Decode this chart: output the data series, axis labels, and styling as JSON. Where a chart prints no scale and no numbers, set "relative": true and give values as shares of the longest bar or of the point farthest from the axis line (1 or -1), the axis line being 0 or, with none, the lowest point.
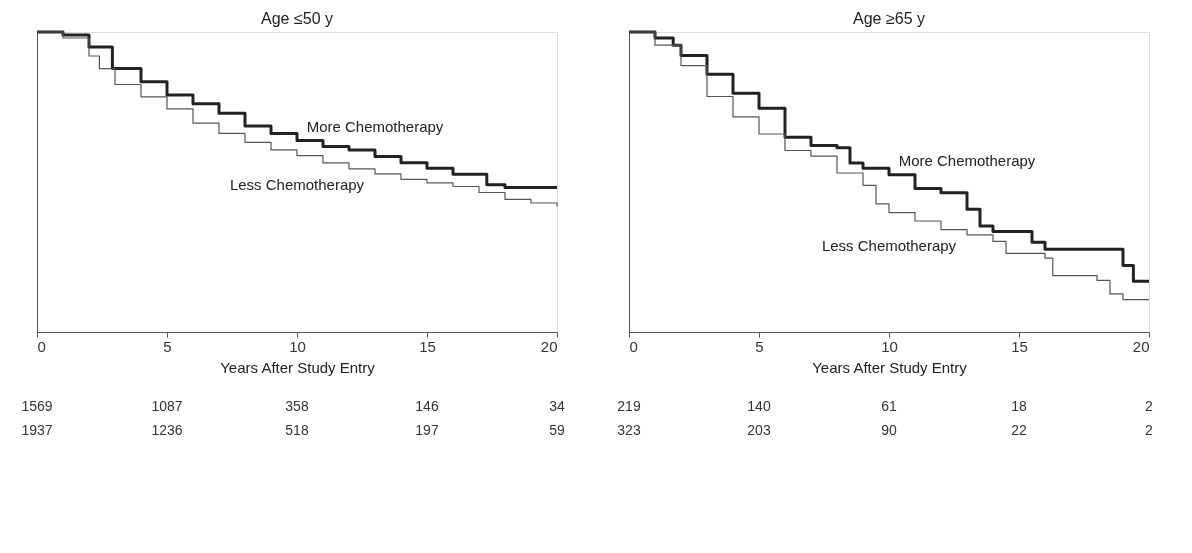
{
  "chart_data": [
    {
      "type": "step",
      "title": "Age ≤50 y",
      "xlabel": "Years After Study Entry",
      "relative": true,
      "xlim": [
        0,
        20
      ],
      "xticks": [
        0,
        5,
        10,
        15,
        20
      ],
      "grid": false,
      "series": [
        {
          "name": "More Chemotherapy",
          "color": "#222222",
          "x": [
            0,
            1,
            2,
            2.9,
            4,
            5,
            6,
            7,
            8,
            9,
            10,
            11,
            12,
            13,
            14,
            15,
            16,
            17.3,
            18,
            20
          ],
          "values": [
            1.0,
            0.99,
            0.95,
            0.878,
            0.834,
            0.79,
            0.761,
            0.729,
            0.687,
            0.662,
            0.638,
            0.618,
            0.607,
            0.585,
            0.564,
            0.546,
            0.526,
            0.491,
            0.482,
            0.482
          ]
        },
        {
          "name": "Less Chemotherapy",
          "color": "#555555",
          "x": [
            0,
            1,
            2,
            2.4,
            3,
            4,
            5,
            6,
            7,
            8,
            9,
            10,
            11,
            12,
            13,
            14,
            15,
            16,
            17,
            18,
            19,
            20
          ],
          "values": [
            1.0,
            0.98,
            0.92,
            0.878,
            0.825,
            0.784,
            0.744,
            0.696,
            0.662,
            0.632,
            0.607,
            0.588,
            0.564,
            0.544,
            0.527,
            0.509,
            0.497,
            0.485,
            0.465,
            0.442,
            0.43,
            0.418
          ]
        }
      ],
      "annotations": [
        "1569",
        "1087",
        "358",
        "146",
        "34",
        "1937",
        "1236",
        "518",
        "197",
        "59"
      ]
    },
    {
      "type": "step",
      "title": "Age ≥65 y",
      "xlabel": "Years After Study Entry",
      "relative": true,
      "xlim": [
        0,
        20
      ],
      "xticks": [
        0,
        5,
        10,
        15,
        20
      ],
      "grid": false,
      "series": [
        {
          "name": "More Chemotherapy",
          "color": "#222222",
          "x": [
            0,
            1,
            1.7,
            2,
            3,
            4,
            5,
            6,
            7,
            8,
            8.5,
            9,
            10,
            11,
            12,
            13,
            13.5,
            14,
            15,
            15.5,
            16,
            18.8,
            19,
            19.4,
            20
          ],
          "values": [
            1.0,
            0.98,
            0.956,
            0.922,
            0.859,
            0.796,
            0.746,
            0.649,
            0.622,
            0.614,
            0.563,
            0.546,
            0.524,
            0.478,
            0.464,
            0.409,
            0.353,
            0.335,
            0.335,
            0.299,
            0.276,
            0.276,
            0.222,
            0.169,
            0.169
          ]
        },
        {
          "name": "Less Chemotherapy",
          "color": "#555555",
          "x": [
            0,
            1,
            2,
            3,
            4,
            5,
            6,
            7,
            8,
            9,
            9.5,
            10,
            11,
            12,
            13,
            14,
            14.5,
            15,
            16,
            16.3,
            18,
            18.5,
            19,
            20
          ],
          "values": [
            1.0,
            0.956,
            0.888,
            0.785,
            0.717,
            0.66,
            0.605,
            0.586,
            0.53,
            0.489,
            0.427,
            0.398,
            0.37,
            0.341,
            0.324,
            0.302,
            0.262,
            0.262,
            0.246,
            0.188,
            0.172,
            0.127,
            0.108,
            0.108
          ]
        }
      ],
      "annotations": [
        "219",
        "140",
        "61",
        "18",
        "2",
        "323",
        "203",
        "90",
        "22",
        "2"
      ]
    }
  ]
}
